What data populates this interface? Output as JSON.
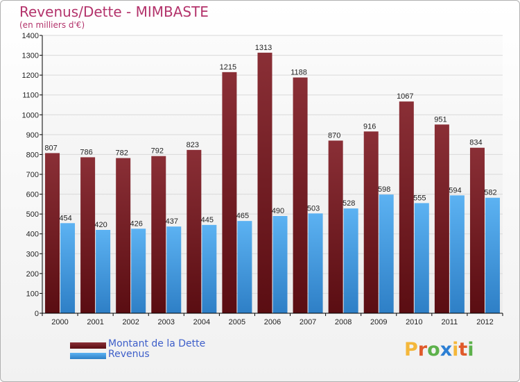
{
  "header": {
    "title": "Revenus/Dette - MIMBASTE",
    "subtitle": "(en milliers d'€)"
  },
  "colors": {
    "title": "#b3336b",
    "series_dette": "#7a1f26",
    "series_revenus": "#4ea6ea",
    "legend_text": "#3d5ec9",
    "axis": "#000000",
    "grid": "#d9d9d9"
  },
  "legend": {
    "dette_label": "Montant de la Dette",
    "revenus_label": "Revenus"
  },
  "logo": {
    "text": "Proxiti",
    "letter_colors": [
      "#f4b73a",
      "#e05a2b",
      "#5db14b",
      "#2c7fd4",
      "#f4b73a",
      "#e05a2b",
      "#5db14b"
    ]
  },
  "chart_data": {
    "type": "bar",
    "title": "Revenus/Dette - MIMBASTE",
    "subtitle": "(en milliers d'€)",
    "categories": [
      "2000",
      "2001",
      "2002",
      "2003",
      "2004",
      "2005",
      "2006",
      "2007",
      "2008",
      "2009",
      "2010",
      "2011",
      "2012"
    ],
    "series": [
      {
        "name": "Montant de la Dette",
        "values": [
          807,
          786,
          782,
          792,
          823,
          1215,
          1313,
          1188,
          870,
          916,
          1067,
          951,
          834
        ]
      },
      {
        "name": "Revenus",
        "values": [
          454,
          420,
          426,
          437,
          445,
          465,
          490,
          503,
          528,
          598,
          555,
          594,
          582
        ]
      }
    ],
    "ylim": [
      0,
      1400
    ],
    "yticks": [
      0,
      100,
      200,
      300,
      400,
      500,
      600,
      700,
      800,
      900,
      1000,
      1100,
      1200,
      1300,
      1400
    ],
    "xlabel": "",
    "ylabel": "",
    "grid": true,
    "legend_position": "bottom-left"
  }
}
